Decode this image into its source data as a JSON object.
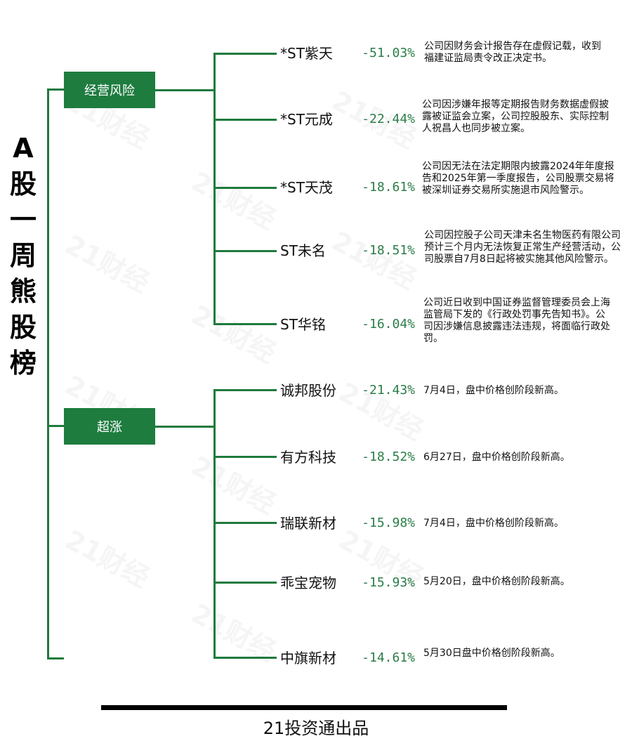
{
  "title_chars": [
    "A",
    "股",
    "一",
    "周",
    "熊",
    "股",
    "榜"
  ],
  "watermark_text": "21财经",
  "categories": [
    {
      "label": "经营风险",
      "stocks": [
        {
          "name": "*ST紫天",
          "pct": "-51.03%",
          "note": "公司因财务会计报告存在虚假记载，收到福建证监局责令改正决定书。"
        },
        {
          "name": "*ST元成",
          "pct": "-22.44%",
          "note": "公司因涉嫌年报等定期报告财务数据虚假披露被证监会立案，公司控股股东、实际控制人祝昌人也同步被立案。"
        },
        {
          "name": "*ST天茂",
          "pct": "-18.61%",
          "note": "公司因无法在法定期限内披露2024年年度报告和2025年第一季度报告，公司股票交易将被深圳证券交易所实施退市风险警示。"
        },
        {
          "name": "ST未名",
          "pct": "-18.51%",
          "note": "公司因控股子公司天津未名生物医药有限公司预计三个月内无法恢复正常生产经营活动，公司股票自7月8日起将被实施其他风险警示。"
        },
        {
          "name": "ST华铭",
          "pct": "-16.04%",
          "note": "公司近日收到中国证券监督管理委员会上海监管局下发的《行政处罚事先告知书》。公司因涉嫌信息披露违法违规，将面临行政处罚。"
        }
      ]
    },
    {
      "label": "超涨",
      "stocks": [
        {
          "name": "诚邦股份",
          "pct": "-21.43%",
          "note": "7月4日，盘中价格创阶段新高。"
        },
        {
          "name": "有方科技",
          "pct": "-18.52%",
          "note": "6月27日，盘中价格创阶段新高。"
        },
        {
          "name": "瑞联新材",
          "pct": "-15.98%",
          "note": "7月4日，盘中价格创阶段新高。"
        },
        {
          "name": "乖宝宠物",
          "pct": "-15.93%",
          "note": "5月20日，盘中价格创阶段新高。"
        },
        {
          "name": "中旗新材",
          "pct": "-14.61%",
          "note": "5月30日盘中价格创阶段新高。"
        }
      ]
    }
  ],
  "footer": "21投资通出品",
  "colors": {
    "accent": "#1e7c3f",
    "pct": "#2a7d47",
    "line": "#1f7a3d"
  }
}
